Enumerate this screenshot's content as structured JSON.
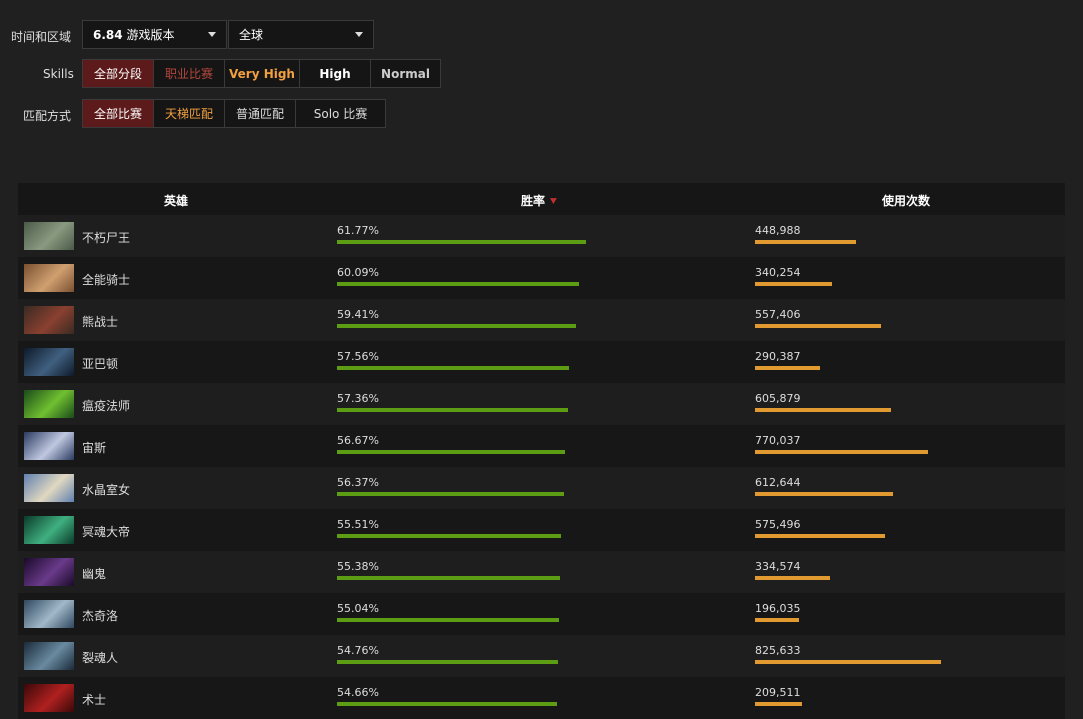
{
  "filters": {
    "time_region_label": "时间和区域",
    "version_value": "6.84",
    "version_suffix": "游戏版本",
    "region_value": "全球",
    "skills_label": "Skills",
    "skills": [
      "全部分段",
      "职业比赛",
      "Very High",
      "High",
      "Normal"
    ],
    "match_label": "匹配方式",
    "match_types": [
      "全部比赛",
      "天梯匹配",
      "普通匹配",
      "Solo 比赛"
    ]
  },
  "table": {
    "headers": {
      "hero": "英雄",
      "winrate": "胜率",
      "picks": "使用次数"
    },
    "sort_icon": "chevron-down-icon"
  },
  "heroes": [
    {
      "name": "不朽尸王",
      "winrate": "61.77%",
      "winrate_value": 61.77,
      "picks": "448,988",
      "picks_value": 448988,
      "colors": [
        "#4a5a48",
        "#8a9a80"
      ]
    },
    {
      "name": "全能骑士",
      "winrate": "60.09%",
      "winrate_value": 60.09,
      "picks": "340,254",
      "picks_value": 340254,
      "colors": [
        "#7a5030",
        "#d0a070"
      ]
    },
    {
      "name": "熊战士",
      "winrate": "59.41%",
      "winrate_value": 59.41,
      "picks": "557,406",
      "picks_value": 557406,
      "colors": [
        "#3a2a22",
        "#8a4030"
      ]
    },
    {
      "name": "亚巴顿",
      "winrate": "57.56%",
      "winrate_value": 57.56,
      "picks": "290,387",
      "picks_value": 290387,
      "colors": [
        "#0e1a2a",
        "#406080"
      ]
    },
    {
      "name": "瘟疫法师",
      "winrate": "57.36%",
      "winrate_value": 57.36,
      "picks": "605,879",
      "picks_value": 605879,
      "colors": [
        "#1a4a1a",
        "#70c030"
      ]
    },
    {
      "name": "宙斯",
      "winrate": "56.67%",
      "winrate_value": 56.67,
      "picks": "770,037",
      "picks_value": 770037,
      "colors": [
        "#2a3a60",
        "#c0c8e0"
      ]
    },
    {
      "name": "水晶室女",
      "winrate": "56.37%",
      "winrate_value": 56.37,
      "picks": "612,644",
      "picks_value": 612644,
      "colors": [
        "#6080b0",
        "#e0d8c0"
      ]
    },
    {
      "name": "冥魂大帝",
      "winrate": "55.51%",
      "winrate_value": 55.51,
      "picks": "575,496",
      "picks_value": 575496,
      "colors": [
        "#0a3a2a",
        "#40b080"
      ]
    },
    {
      "name": "幽鬼",
      "winrate": "55.38%",
      "winrate_value": 55.38,
      "picks": "334,574",
      "picks_value": 334574,
      "colors": [
        "#1a0a2a",
        "#6a3a8a"
      ]
    },
    {
      "name": "杰奇洛",
      "winrate": "55.04%",
      "winrate_value": 55.04,
      "picks": "196,035",
      "picks_value": 196035,
      "colors": [
        "#304860",
        "#a0b8c8"
      ]
    },
    {
      "name": "裂魂人",
      "winrate": "54.76%",
      "winrate_value": 54.76,
      "picks": "825,633",
      "picks_value": 825633,
      "colors": [
        "#1a2a3a",
        "#6a8aa0"
      ]
    },
    {
      "name": "术士",
      "winrate": "54.66%",
      "winrate_value": 54.66,
      "picks": "209,511",
      "picks_value": 209511,
      "colors": [
        "#3a0808",
        "#b02020"
      ]
    }
  ]
}
